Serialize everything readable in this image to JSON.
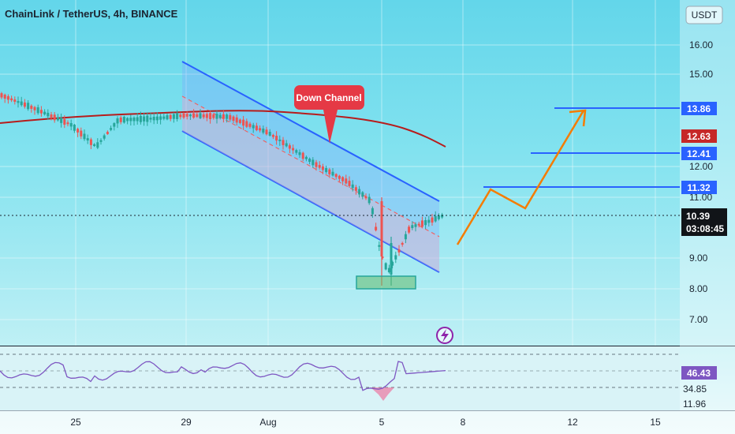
{
  "header": {
    "title": "ChainLink / TetherUS, 4h, BINANCE",
    "currency": "USDT"
  },
  "annotation": {
    "label": "Down Channel"
  },
  "chart_data": {
    "type": "candlestick",
    "title": "ChainLink / TetherUS, 4h, BINANCE",
    "y_unit": "USDT",
    "x_ticks": [
      "25",
      "29",
      "Aug",
      "5",
      "8",
      "12",
      "15"
    ],
    "y_ticks": [
      "16.00",
      "15.00",
      "12.00",
      "11.00",
      "9.00",
      "8.00",
      "7.00"
    ],
    "ylim": [
      6.6,
      16.6
    ],
    "grid": true,
    "last_price": "10.39",
    "countdown": "03:08:45",
    "price_levels": [
      {
        "label": "13.86",
        "color": "#2962ff"
      },
      {
        "label": "12.63",
        "color": "#c62828"
      },
      {
        "label": "12.41",
        "color": "#2962ff"
      },
      {
        "label": "11.32",
        "color": "#2962ff"
      }
    ],
    "rsi": {
      "value_label": "46.43",
      "upper_label": "34.85",
      "lower_label": "11.96"
    }
  },
  "colors": {
    "up": "#26a69a",
    "down": "#ef5350",
    "ma": "#b71c1c",
    "channel": "#2962ff",
    "projection": "#f57c00",
    "support_box": "#66bb6a",
    "rsi_line": "#7e57c2",
    "callout": "#e53945"
  }
}
